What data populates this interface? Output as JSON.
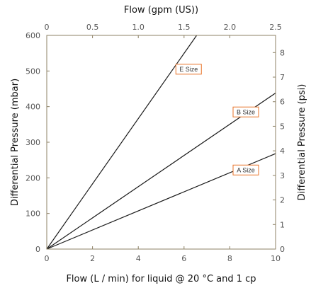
{
  "chart_data": {
    "type": "line",
    "title": "",
    "xlabel": "Flow (L / min) for liquid @ 20 °C and 1 cp",
    "ylabel": "Differential Pressure (mbar)",
    "x2label": "Flow (gpm (US))",
    "y2label": "Differential Pressure (psi)",
    "xlim": [
      0,
      10
    ],
    "ylim": [
      0,
      600
    ],
    "x2lim": [
      0,
      2.5
    ],
    "y2lim": [
      0,
      8.7
    ],
    "x_ticks": [
      "0",
      "2",
      "4",
      "6",
      "8",
      "10"
    ],
    "y_ticks": [
      "0",
      "100",
      "200",
      "300",
      "400",
      "500",
      "600"
    ],
    "x2_ticks": [
      "0",
      "0.5",
      "1.0",
      "1.5",
      "2.0",
      "2.5"
    ],
    "y2_ticks": [
      "0",
      "1",
      "2",
      "3",
      "4",
      "5",
      "6",
      "7",
      "8"
    ],
    "grid": false,
    "series": [
      {
        "name": "E Size",
        "x": [
          0,
          6.55
        ],
        "y": [
          0,
          600
        ],
        "label_at": [
          6.2,
          505
        ]
      },
      {
        "name": "B Size",
        "x": [
          0,
          10
        ],
        "y": [
          0,
          438
        ],
        "label_at": [
          8.7,
          385
        ]
      },
      {
        "name": "A Size",
        "x": [
          0,
          10
        ],
        "y": [
          0,
          268
        ],
        "label_at": [
          8.7,
          222
        ]
      }
    ],
    "colors": {
      "line": "#1a1a1a",
      "axis": "#8c8064",
      "label_border": "#e8742a",
      "text": "#111111"
    }
  }
}
